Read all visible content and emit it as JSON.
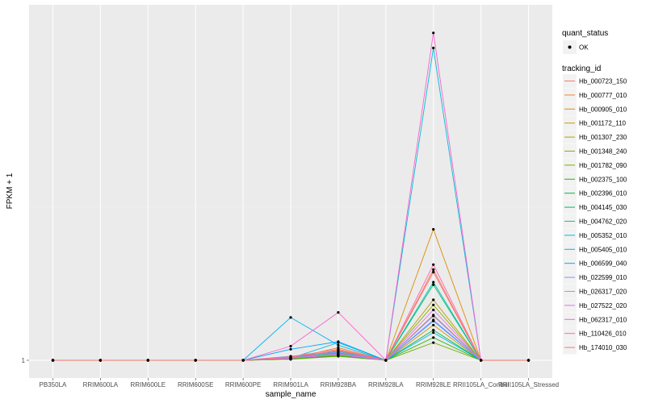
{
  "chart_data": {
    "type": "line",
    "xlabel": "sample_name",
    "ylabel": "FPKM + 1",
    "y_tick_labels": [
      "1"
    ],
    "ylim": [
      0,
      68
    ],
    "categories": [
      "PB350LA",
      "RRIM600LA",
      "RRIM600LE",
      "RRIM600SE",
      "RRIM600PE",
      "RRIM901LA",
      "RRIM928BA",
      "RRIM928LA",
      "RRIM928LE",
      "RRII105LA_Control",
      "RRII105LA_Stressed"
    ],
    "quant_status": {
      "title": "quant_status",
      "label": "OK"
    },
    "legend_title": "tracking_id",
    "series": [
      {
        "name": "Hb_000723_150",
        "color": "#F8766D",
        "values": [
          0,
          0,
          0,
          0,
          0,
          0.5,
          1.0,
          0,
          18,
          0,
          0
        ]
      },
      {
        "name": "Hb_000777_010",
        "color": "#EC8239",
        "values": [
          0,
          0,
          0,
          0,
          0,
          0.3,
          2.5,
          0,
          9,
          0,
          0
        ]
      },
      {
        "name": "Hb_000905_010",
        "color": "#DB8E00",
        "values": [
          0,
          0,
          0,
          0,
          0,
          0.4,
          2.0,
          0,
          26,
          0,
          0
        ]
      },
      {
        "name": "Hb_001172_110",
        "color": "#C79800",
        "values": [
          0,
          0,
          0,
          0,
          0,
          0.3,
          1.4,
          0,
          7,
          0,
          0
        ]
      },
      {
        "name": "Hb_001307_230",
        "color": "#AFA100",
        "values": [
          0,
          0,
          0,
          0,
          0,
          0.2,
          1.0,
          0,
          12,
          0,
          0
        ]
      },
      {
        "name": "Hb_001348_240",
        "color": "#93AA00",
        "values": [
          0,
          0,
          0,
          0,
          0,
          0.3,
          1.2,
          0,
          11,
          0,
          0
        ]
      },
      {
        "name": "Hb_001782_090",
        "color": "#6EB200",
        "values": [
          0,
          0,
          0,
          0,
          0,
          0.2,
          0.8,
          0,
          3.5,
          0,
          0
        ]
      },
      {
        "name": "Hb_002375_100",
        "color": "#2BB600",
        "values": [
          0,
          0,
          0,
          0,
          0,
          0.3,
          0.9,
          0,
          4.5,
          0,
          0
        ]
      },
      {
        "name": "Hb_002396_010",
        "color": "#00BA38",
        "values": [
          0,
          0,
          0,
          0,
          0,
          0.4,
          1.2,
          0,
          6,
          0,
          0
        ]
      },
      {
        "name": "Hb_004145_030",
        "color": "#00BE70",
        "values": [
          0,
          0,
          0,
          0,
          0,
          0.5,
          1.5,
          0,
          15,
          0,
          0
        ]
      },
      {
        "name": "Hb_004762_020",
        "color": "#00C1AB",
        "values": [
          0,
          0,
          0,
          0,
          0,
          0.6,
          1.8,
          0,
          15.5,
          0,
          0
        ]
      },
      {
        "name": "Hb_005352_010",
        "color": "#00BBDA",
        "values": [
          0,
          0,
          0,
          0,
          0,
          0.4,
          3.5,
          0,
          62,
          0,
          0
        ]
      },
      {
        "name": "Hb_005405_010",
        "color": "#00B3F2",
        "values": [
          0,
          0,
          0,
          0,
          0,
          8.5,
          3.0,
          0,
          5.5,
          0,
          0
        ]
      },
      {
        "name": "Hb_006599_040",
        "color": "#00A5FF",
        "values": [
          0,
          0,
          0,
          0,
          0,
          2.2,
          3.7,
          0,
          7.8,
          0,
          0
        ]
      },
      {
        "name": "Hb_022599_010",
        "color": "#7997FF",
        "values": [
          0,
          0,
          0,
          0,
          0,
          0.8,
          1.6,
          0,
          8.8,
          0,
          0
        ]
      },
      {
        "name": "Hb_026317_020",
        "color": "#B983FF",
        "values": [
          0,
          0,
          0,
          0,
          0,
          0.5,
          1.3,
          0,
          8,
          0,
          0
        ]
      },
      {
        "name": "Hb_027522_020",
        "color": "#E76BF3",
        "values": [
          0,
          0,
          0,
          0,
          0,
          0.4,
          1.1,
          0,
          10,
          0,
          0
        ]
      },
      {
        "name": "Hb_062317_010",
        "color": "#FD61D1",
        "values": [
          0,
          0,
          0,
          0,
          0,
          2.8,
          9.5,
          0,
          65,
          0,
          0
        ]
      },
      {
        "name": "Hb_110426_010",
        "color": "#FF67A4",
        "values": [
          0,
          0,
          0,
          0,
          0,
          0.6,
          1.9,
          0,
          19,
          0,
          0
        ]
      },
      {
        "name": "Hb_174010_030",
        "color": "#F8766D",
        "values": [
          0,
          0,
          0,
          0,
          0,
          0.7,
          2.2,
          0,
          17.5,
          0,
          0
        ]
      }
    ]
  }
}
